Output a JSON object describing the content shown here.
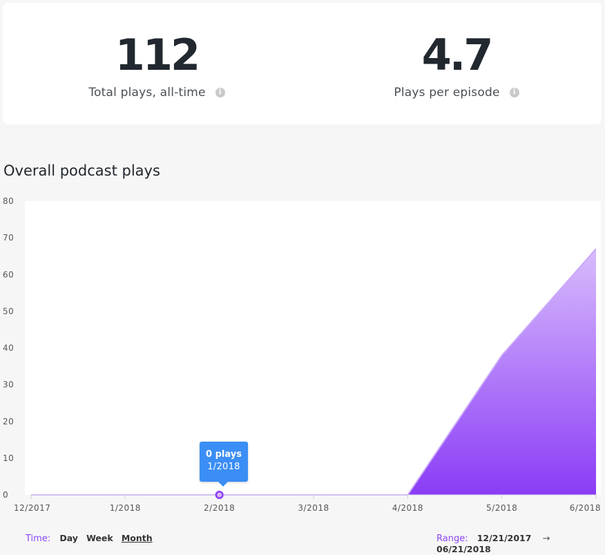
{
  "stats": {
    "total_plays_value": "112",
    "total_plays_label": "Total plays, all-time",
    "per_episode_value": "4.7",
    "per_episode_label": "Plays per episode",
    "info_icon": "info-icon"
  },
  "section_title": "Overall podcast plays",
  "chart_data": {
    "type": "area",
    "x": [
      "12/2017",
      "1/2018",
      "2/2018",
      "3/2018",
      "4/2018",
      "5/2018",
      "6/2018"
    ],
    "series": [
      {
        "values": [
          0,
          0,
          0,
          0,
          0,
          38,
          67
        ]
      }
    ],
    "ylim": [
      0,
      80
    ],
    "yticks": [
      0,
      10,
      20,
      30,
      40,
      50,
      60,
      70,
      80
    ],
    "grid": false,
    "colors": {
      "fill_top": "#d8bcfc",
      "fill_bottom": "#8b3cf6",
      "line": "#c9a8fb",
      "marker": "#8b3cf6"
    }
  },
  "tooltip": {
    "title": "0 plays",
    "subtitle": "1/2018",
    "point_index": 2
  },
  "time_controls": {
    "label": "Time:",
    "options": [
      "Day",
      "Week",
      "Month"
    ],
    "selected": "Month"
  },
  "range_controls": {
    "label": "Range:",
    "start": "12/21/2017",
    "arrow": "→",
    "end": "06/21/2018"
  }
}
